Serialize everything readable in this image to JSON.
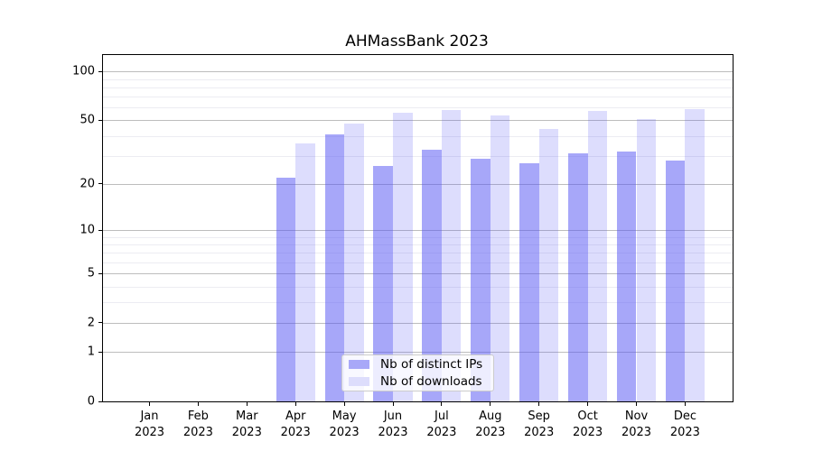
{
  "title": "AHMassBank 2023",
  "year_line": "2023",
  "legend": {
    "items": [
      {
        "label": "Nb of distinct IPs",
        "color": "#a8a8f8"
      },
      {
        "label": "Nb of downloads",
        "color": "#ddddfc"
      }
    ],
    "position": "lower center"
  },
  "colors": {
    "bar_distinct_ips": "rgba(87,87,243,0.52)",
    "bar_downloads": "rgba(87,87,243,0.20)",
    "grid_major": "#bdbdbd",
    "grid_minor": "#ececf2",
    "axis": "#000000"
  },
  "chart_data": {
    "type": "bar",
    "title": "AHMassBank 2023",
    "categories": [
      "Jan",
      "Feb",
      "Mar",
      "Apr",
      "May",
      "Jun",
      "Jul",
      "Aug",
      "Sep",
      "Oct",
      "Nov",
      "Dec"
    ],
    "category_year": "2023",
    "series": [
      {
        "name": "Nb of distinct IPs",
        "values": [
          0,
          0,
          0,
          22,
          41,
          26,
          33,
          29,
          27,
          31,
          32,
          28
        ]
      },
      {
        "name": "Nb of downloads",
        "values": [
          0,
          0,
          0,
          36,
          48,
          56,
          58,
          54,
          44,
          57,
          51,
          59
        ]
      }
    ],
    "yscale": "log1p",
    "yticks": [
      0,
      1,
      2,
      5,
      10,
      20,
      50,
      100
    ],
    "minor_yticks": [
      3,
      4,
      6,
      7,
      8,
      9,
      30,
      40,
      60,
      70,
      80,
      90
    ],
    "ylim": [
      0,
      110
    ],
    "grid": "on",
    "legend_position": "lower center",
    "xlabel": "",
    "ylabel": ""
  }
}
